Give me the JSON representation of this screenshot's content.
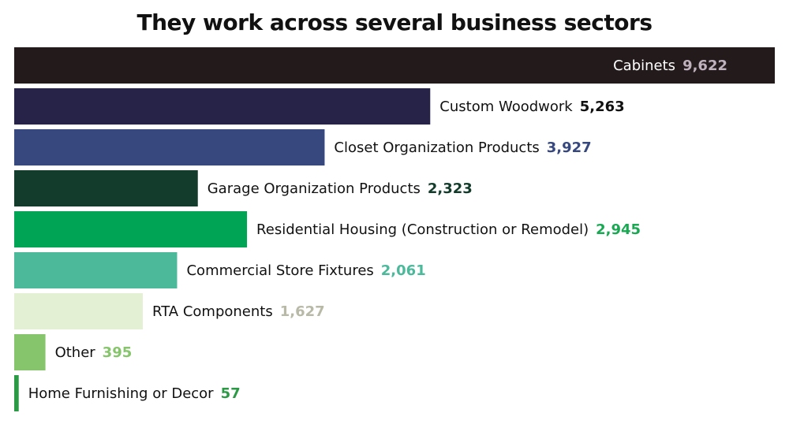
{
  "chart_data": {
    "type": "bar",
    "orientation": "horizontal",
    "title": "They work across several business sectors",
    "xlabel": "",
    "ylabel": "",
    "xlim": [
      0,
      9622
    ],
    "grid": false,
    "legend": "none",
    "categories": [
      "Cabinets",
      "Custom Woodwork",
      "Closet Organization Products",
      "Garage Organization Products",
      "Residential Housing (Construction or Remodel)",
      "Commercial Store Fixtures",
      "RTA Components",
      "Other",
      "Home Furnishing or Decor"
    ],
    "values": [
      9622,
      5263,
      3927,
      2323,
      2945,
      2061,
      1627,
      395,
      57
    ],
    "value_labels": [
      "9,622",
      "5,263",
      "3,927",
      "2,323",
      "2,945",
      "2,061",
      "1,627",
      "395",
      "57"
    ],
    "colors": [
      "#231a1c",
      "#272247",
      "#36487e",
      "#143c2c",
      "#00a455",
      "#4bb99a",
      "#e4f0d4",
      "#86c56c",
      "#2a9a45"
    ],
    "label_colors": [
      "#ffffff",
      "#111111",
      "#111111",
      "#111111",
      "#111111",
      "#111111",
      "#111111",
      "#111111",
      "#111111"
    ],
    "value_colors": [
      "#bfb2bd",
      "#111111",
      "#36487e",
      "#143c2c",
      "#1aa853",
      "#4bb99a",
      "#b9b9a8",
      "#86c56c",
      "#2a9a45"
    ],
    "label_inside": [
      true,
      false,
      false,
      false,
      false,
      false,
      false,
      false,
      false
    ]
  }
}
